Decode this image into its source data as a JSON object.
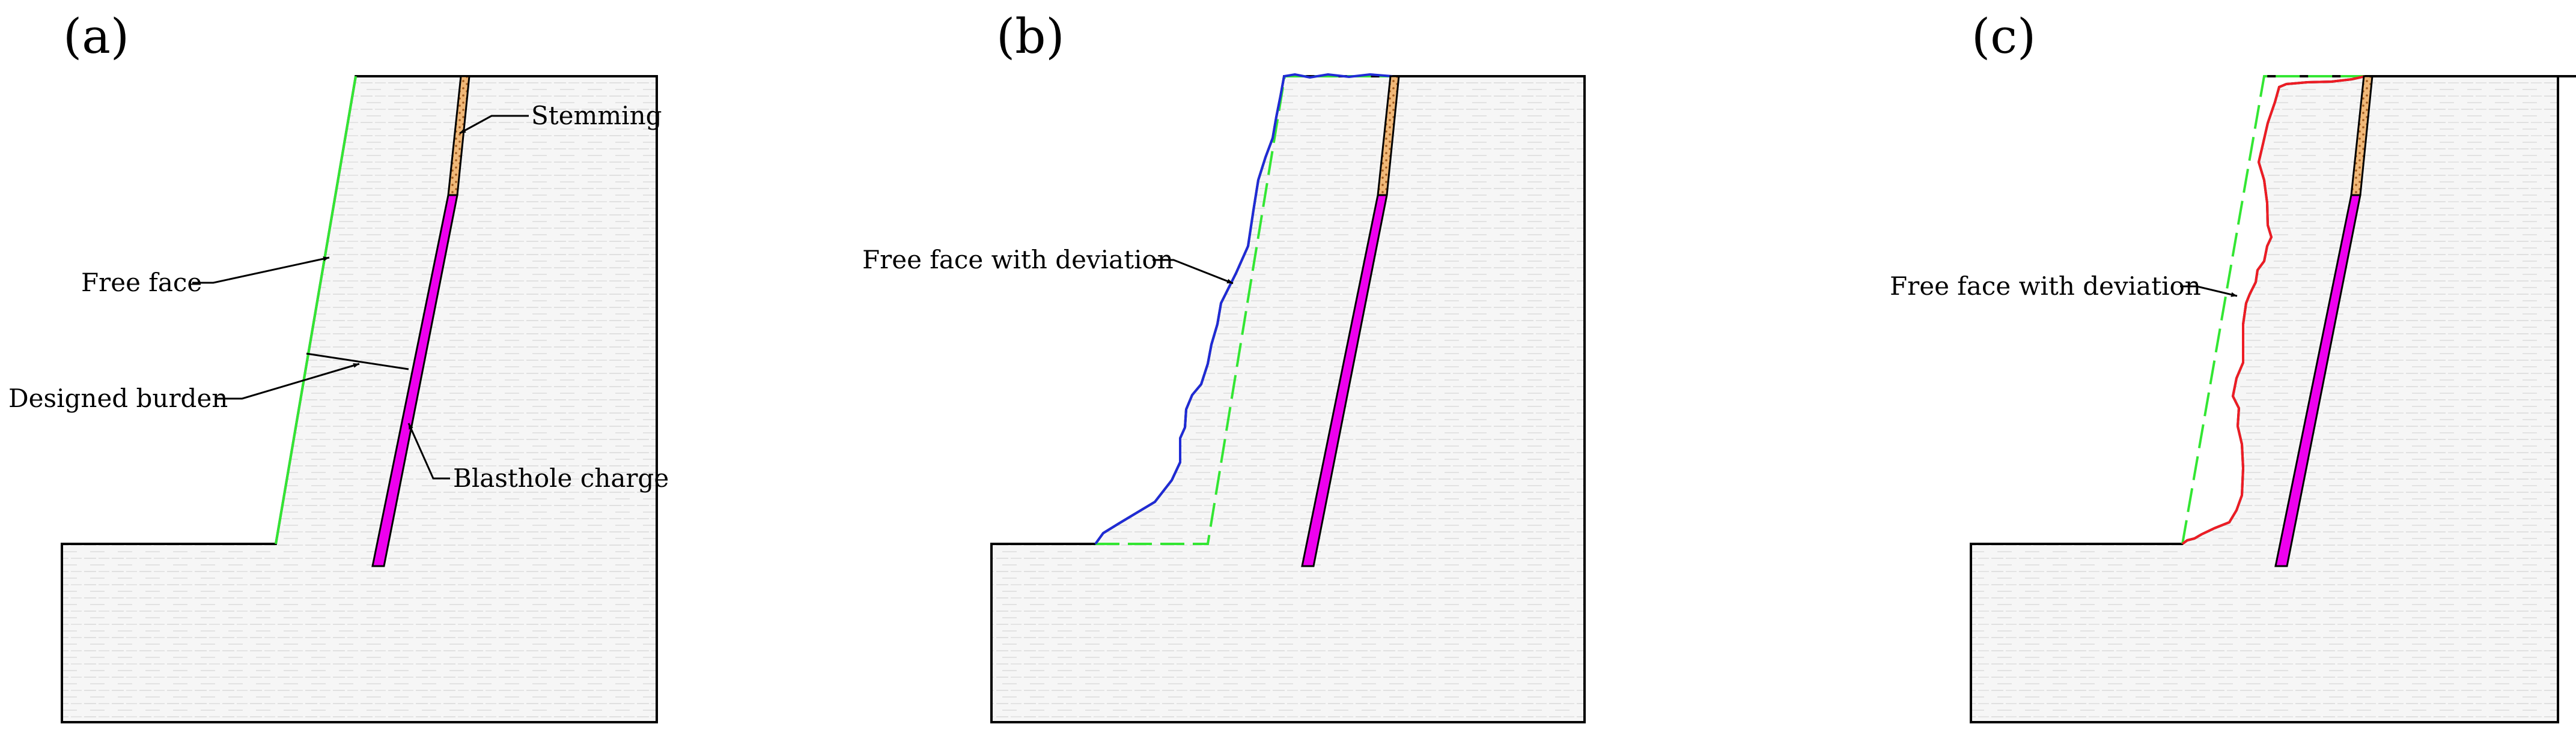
{
  "panels": [
    {
      "tag": "(a)",
      "labels": {
        "stemming": "Stemming",
        "free_face": "Free face",
        "designed_burden": "Designed burden",
        "blasthole_charge": "Blasthole charge"
      }
    },
    {
      "tag": "(b)",
      "labels": {
        "free_face_deviation": "Free face with deviation"
      }
    },
    {
      "tag": "(c)",
      "labels": {
        "free_face_deviation": "Free face with deviation"
      }
    }
  ],
  "colors": {
    "rock_outline": "#000000",
    "free_face_design": "#33e633",
    "deviation_b": "#1f2bd6",
    "deviation_c": "#ee1c24",
    "charge": "#ee00ee",
    "stemming": "#e8a05a"
  },
  "icons": {
    "charge": "magenta-column",
    "stemming": "gravel-hatch"
  }
}
